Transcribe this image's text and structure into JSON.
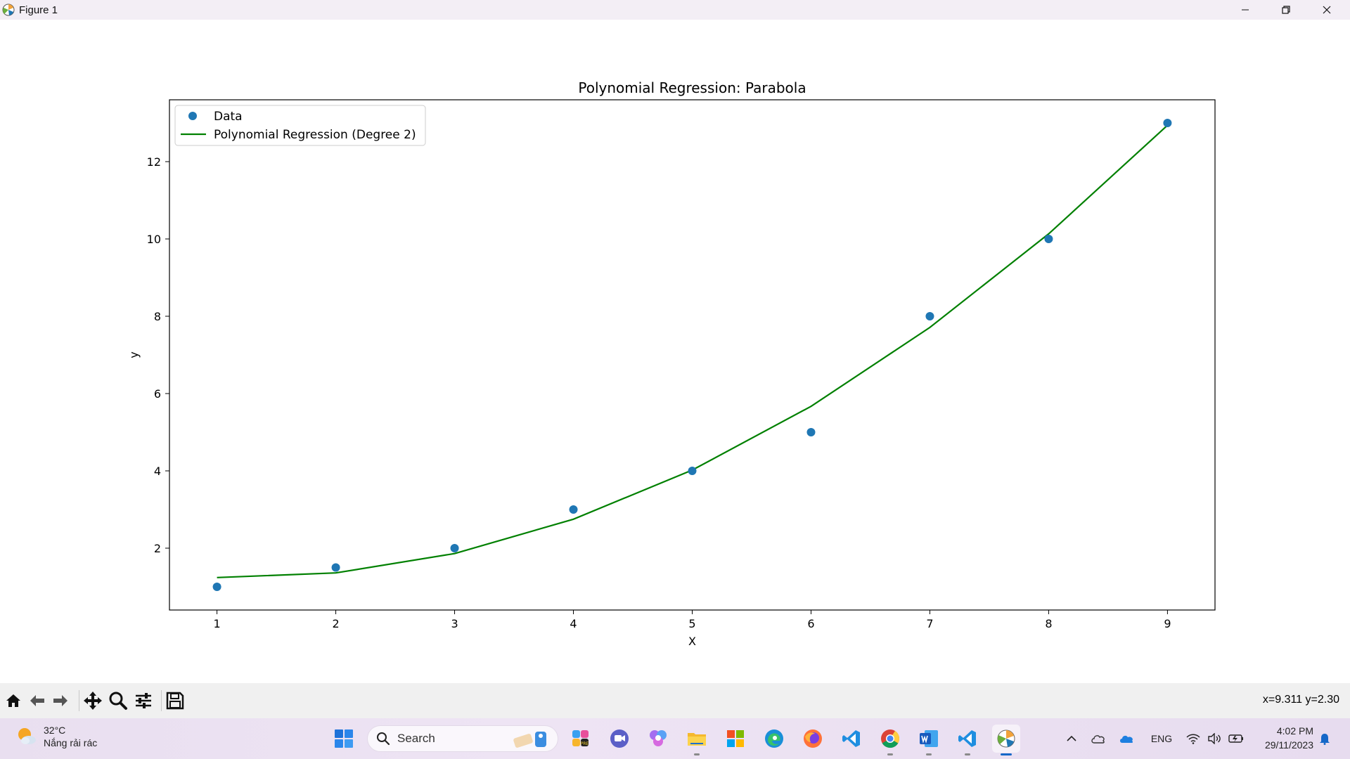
{
  "window": {
    "title": "Figure 1",
    "controls": [
      "minimize",
      "restore",
      "close"
    ]
  },
  "chart_data": {
    "type": "scatter",
    "title": "Polynomial Regression: Parabola",
    "xlabel": "X",
    "ylabel": "y",
    "xlim": [
      0.6,
      9.4
    ],
    "ylim": [
      0.4,
      13.6
    ],
    "xticks": [
      1,
      2,
      3,
      4,
      5,
      6,
      7,
      8,
      9
    ],
    "yticks": [
      2,
      4,
      6,
      8,
      10,
      12
    ],
    "legend_position": "top-left",
    "series": [
      {
        "name": "Data",
        "kind": "scatter",
        "color": "#1f77b4",
        "x": [
          1,
          2,
          3,
          4,
          5,
          6,
          7,
          8,
          9
        ],
        "y": [
          1,
          1.5,
          2,
          3,
          4,
          5,
          8,
          10,
          13
        ]
      },
      {
        "name": "Polynomial Regression (Degree 2)",
        "kind": "line",
        "color": "#008000",
        "x": [
          1,
          2,
          3,
          4,
          5,
          6,
          7,
          8,
          9
        ],
        "y": [
          1.24,
          1.36,
          1.86,
          2.75,
          4.02,
          5.67,
          7.71,
          10.13,
          12.94
        ]
      }
    ]
  },
  "toolbar": {
    "buttons": [
      "home-icon",
      "back-icon",
      "forward-icon",
      "pan-icon",
      "zoom-icon",
      "configure-icon",
      "save-icon"
    ],
    "coords": "x=9.311 y=2.30"
  },
  "taskbar": {
    "weather": {
      "temp": "32°C",
      "desc": "Nắng rải rác"
    },
    "search_placeholder": "Search",
    "apps": [
      "start-icon",
      "copilot-icon",
      "meet-icon",
      "photos-icon",
      "file-explorer-icon",
      "store-icon",
      "edge-icon",
      "firefox-icon",
      "vscode-icon",
      "chrome-icon",
      "word-icon",
      "vscode-icon-2",
      "matplotlib-icon"
    ],
    "tray": {
      "lang": "ENG"
    },
    "clock": {
      "time": "4:02 PM",
      "date": "29/11/2023"
    }
  }
}
